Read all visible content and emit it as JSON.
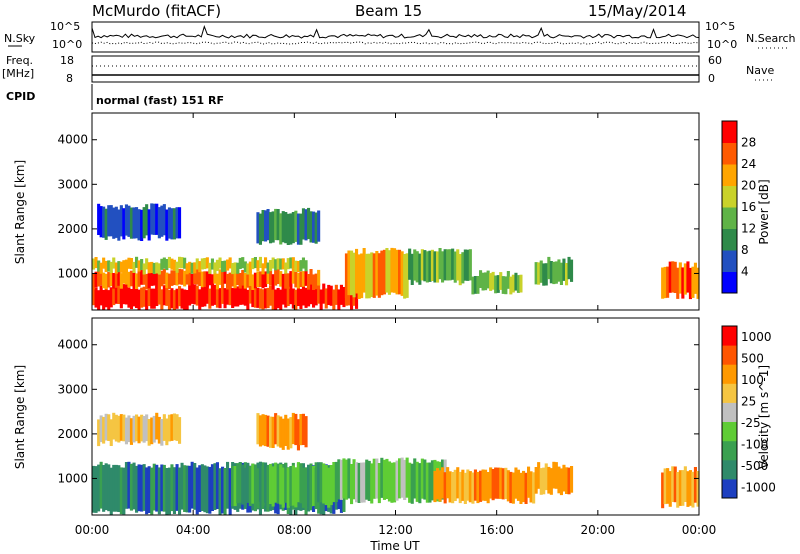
{
  "header": {
    "station": "McMurdo (fitACF)",
    "beam": "Beam 15",
    "date": "15/May/2014"
  },
  "status_panel": {
    "nsky_label": "N.Sky",
    "nsearch_label": "N.Search",
    "noise_top": "10^5",
    "noise_bot": "10^0",
    "freq_label": "Freq.",
    "freq_unit": "[MHz]",
    "freq_top": "18",
    "freq_bot": "8",
    "nave_label": "Nave",
    "nave_top": "60",
    "nave_bot": "0",
    "cpid_label": "CPID",
    "cpid_value": "normal (fast) 151 RF"
  },
  "chart_data": [
    {
      "type": "heatmap",
      "name": "power",
      "ylabel": "Slant Range [km]",
      "xlabel": "",
      "ylim": [
        180,
        4600
      ],
      "yticks": [
        "1000",
        "2000",
        "3000",
        "4000"
      ],
      "colorbar": {
        "label": "Power [dB]",
        "ticks": [
          "4",
          "8",
          "12",
          "16",
          "20",
          "24",
          "28"
        ],
        "colors": [
          "#0000ff",
          "#2250c0",
          "#2f8a4a",
          "#5fb347",
          "#c9d22a",
          "#ffa500",
          "#ff5a00",
          "#ff0000"
        ]
      },
      "blobs": [
        {
          "t0": 0.0,
          "t1": 10.5,
          "r0": 250,
          "r1": 700,
          "level": 7
        },
        {
          "t0": 0.0,
          "t1": 9.0,
          "r0": 700,
          "r1": 1050,
          "level": 6
        },
        {
          "t0": 0.0,
          "t1": 8.5,
          "r0": 1050,
          "r1": 1300,
          "level": 4
        },
        {
          "t0": 10.0,
          "t1": 12.5,
          "r0": 500,
          "r1": 1500,
          "level": 5
        },
        {
          "t0": 12.5,
          "t1": 15.0,
          "r0": 800,
          "r1": 1500,
          "level": 3
        },
        {
          "t0": 15.0,
          "t1": 17.0,
          "r0": 600,
          "r1": 1000,
          "level": 3
        },
        {
          "t0": 17.5,
          "t1": 19.0,
          "r0": 800,
          "r1": 1300,
          "level": 3
        },
        {
          "t0": 22.5,
          "t1": 24.0,
          "r0": 500,
          "r1": 1200,
          "level": 6
        },
        {
          "t0": 0.2,
          "t1": 3.5,
          "r0": 1800,
          "r1": 2500,
          "level": 1
        },
        {
          "t0": 6.5,
          "t1": 9.0,
          "r0": 1700,
          "r1": 2400,
          "level": 2
        }
      ]
    },
    {
      "type": "heatmap",
      "name": "velocity",
      "ylabel": "Slant Range [km]",
      "xlabel": "Time UT",
      "ylim": [
        180,
        4600
      ],
      "yticks": [
        "1000",
        "2000",
        "3000",
        "4000"
      ],
      "colorbar": {
        "label": "Velocity [m s^-1]",
        "ticks": [
          "1000",
          "500",
          "100",
          "25",
          "-25",
          "-100",
          "-500",
          "-1000"
        ],
        "colors": [
          "#1d3fc0",
          "#2f8a6a",
          "#3aa050",
          "#5fcc35",
          "#c0c0c0",
          "#f5c542",
          "#ff9900",
          "#ff5500",
          "#ff0000"
        ]
      },
      "blobs": [
        {
          "t0": 0.0,
          "t1": 10.0,
          "r0": 250,
          "r1": 1300,
          "level": 1
        },
        {
          "t0": 5.5,
          "t1": 9.5,
          "r0": 400,
          "r1": 1300,
          "level": 2
        },
        {
          "t0": 9.5,
          "t1": 14.0,
          "r0": 500,
          "r1": 1400,
          "level": 3
        },
        {
          "t0": 13.5,
          "t1": 17.5,
          "r0": 500,
          "r1": 1200,
          "level": 6
        },
        {
          "t0": 17.5,
          "t1": 19.0,
          "r0": 700,
          "r1": 1300,
          "level": 6
        },
        {
          "t0": 22.5,
          "t1": 24.0,
          "r0": 400,
          "r1": 1200,
          "level": 6
        },
        {
          "t0": 0.2,
          "t1": 3.5,
          "r0": 1800,
          "r1": 2400,
          "level": 5
        },
        {
          "t0": 6.5,
          "t1": 8.5,
          "r0": 1700,
          "r1": 2400,
          "level": 6
        }
      ]
    }
  ],
  "x_axis": {
    "ticks": [
      "00:00",
      "04:00",
      "08:00",
      "12:00",
      "16:00",
      "20:00",
      "00:00"
    ],
    "label": "Time UT"
  }
}
